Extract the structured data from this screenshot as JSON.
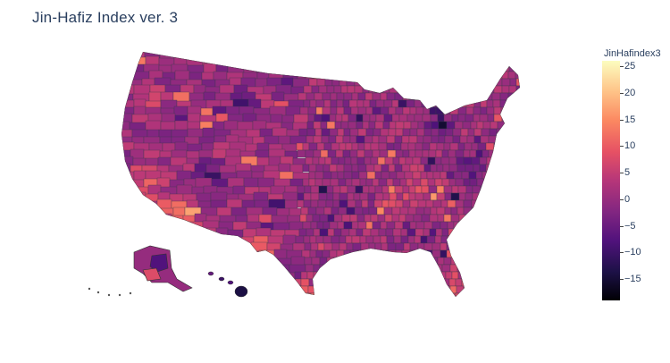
{
  "title": "Jin-Hafiz Index ver. 3",
  "colorbar": {
    "title": "JinHafindex3",
    "ticks": [
      "25",
      "20",
      "15",
      "10",
      "5",
      "0",
      "−5",
      "−10",
      "−15"
    ],
    "tick_values": [
      25,
      20,
      15,
      10,
      5,
      0,
      -5,
      -10,
      -15
    ],
    "range": [
      -19,
      26
    ],
    "colorscale": [
      "#000004",
      "#1d1147",
      "#51127c",
      "#822681",
      "#b63679",
      "#e65164",
      "#fb8861",
      "#fec287",
      "#fcfdbf"
    ]
  },
  "chart_data": {
    "type": "heatmap",
    "subtype": "choropleth",
    "title": "Jin-Hafiz Index ver. 3",
    "geography": "USA counties",
    "colorbar_title": "JinHafindex3",
    "value_range": [
      -19,
      26
    ],
    "colorscale": "magma"
  }
}
